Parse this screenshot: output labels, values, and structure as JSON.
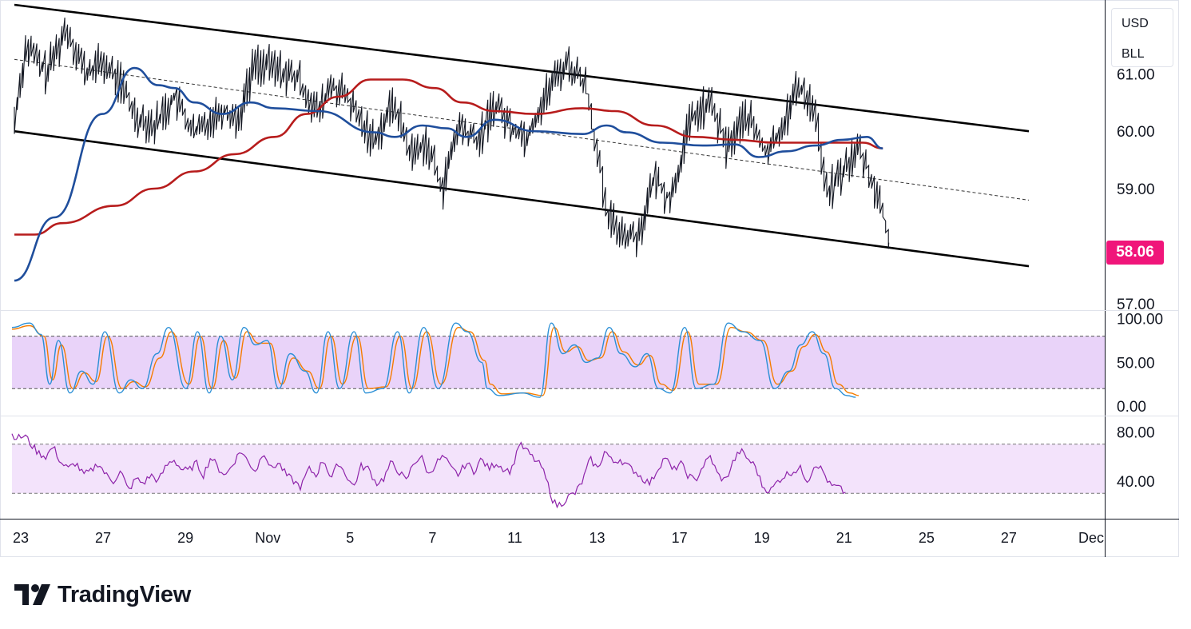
{
  "units": {
    "currency": "USD",
    "unit": "BLL"
  },
  "last_price_label": "58.06",
  "brand": {
    "name": "TradingView"
  },
  "colors": {
    "price": "#131722",
    "ma_fast": "#1f4e9c",
    "ma_slow": "#b71c1c",
    "channel": "#000000",
    "price_tag": "#f0157a",
    "stoch_band": "#e3c8f7",
    "stoch_k": "#2a8fd6",
    "stoch_d": "#f57c00",
    "rsi_band": "#f3e3fb",
    "rsi_line": "#8e24aa"
  },
  "chart_data": [
    {
      "type": "line",
      "pane": "price",
      "x_axis_ticks": [
        "23",
        "27",
        "29",
        "Nov",
        "5",
        "7",
        "11",
        "13",
        "17",
        "19",
        "21",
        "25",
        "27",
        "Dec"
      ],
      "y_axis_ticks": [
        "61.00",
        "60.00",
        "59.00",
        "57.00"
      ],
      "ylim": [
        56.9,
        62.2
      ],
      "last_value": 58.06,
      "price_anchors": [
        [
          0,
          60.2
        ],
        [
          0.3,
          61.5
        ],
        [
          0.8,
          61.0
        ],
        [
          1.3,
          61.8
        ],
        [
          1.8,
          61.0
        ],
        [
          2.2,
          61.2
        ],
        [
          2.7,
          60.8
        ],
        [
          3.0,
          60.3
        ],
        [
          3.5,
          60.1
        ],
        [
          4.0,
          60.6
        ],
        [
          4.5,
          59.95
        ],
        [
          5.2,
          60.4
        ],
        [
          5.6,
          60.2
        ],
        [
          6.0,
          61.2
        ],
        [
          6.5,
          61.1
        ],
        [
          7.1,
          60.9
        ],
        [
          7.6,
          60.3
        ],
        [
          7.9,
          60.8
        ],
        [
          8.3,
          60.6
        ],
        [
          8.7,
          60.1
        ],
        [
          9.0,
          59.85
        ],
        [
          9.5,
          60.5
        ],
        [
          9.9,
          59.6
        ],
        [
          10.3,
          59.8
        ],
        [
          10.7,
          59.0
        ],
        [
          11.1,
          60.1
        ],
        [
          11.6,
          59.8
        ],
        [
          12.0,
          60.5
        ],
        [
          12.4,
          60.1
        ],
        [
          12.8,
          59.9
        ],
        [
          13.4,
          60.8
        ],
        [
          13.8,
          61.2
        ],
        [
          14.3,
          60.8
        ],
        [
          14.6,
          59.5
        ],
        [
          14.8,
          58.5
        ],
        [
          15.3,
          58.2
        ],
        [
          15.6,
          58.2
        ],
        [
          16.0,
          59.2
        ],
        [
          16.4,
          58.8
        ],
        [
          16.9,
          60.2
        ],
        [
          17.4,
          60.5
        ],
        [
          17.8,
          59.7
        ],
        [
          18.3,
          60.3
        ],
        [
          18.8,
          59.6
        ],
        [
          19.2,
          60.1
        ],
        [
          19.6,
          60.8
        ],
        [
          20.0,
          60.4
        ],
        [
          20.3,
          58.9
        ],
        [
          20.8,
          59.4
        ],
        [
          21.1,
          59.7
        ],
        [
          21.4,
          59.2
        ],
        [
          21.7,
          58.6
        ],
        [
          21.85,
          58.06
        ]
      ],
      "ma_fast_anchors": [
        [
          0,
          57.4
        ],
        [
          1.0,
          58.5
        ],
        [
          2.2,
          60.3
        ],
        [
          3.0,
          61.1
        ],
        [
          3.6,
          60.8
        ],
        [
          4.0,
          60.75
        ],
        [
          4.5,
          60.5
        ],
        [
          5.2,
          60.3
        ],
        [
          5.9,
          60.5
        ],
        [
          6.5,
          60.4
        ],
        [
          7.6,
          60.35
        ],
        [
          9.0,
          59.98
        ],
        [
          9.5,
          59.9
        ],
        [
          10.2,
          60.1
        ],
        [
          10.8,
          60.05
        ],
        [
          11.3,
          59.9
        ],
        [
          12.0,
          60.2
        ],
        [
          13.0,
          60.0
        ],
        [
          14.2,
          59.95
        ],
        [
          14.8,
          60.1
        ],
        [
          15.3,
          59.98
        ],
        [
          16.2,
          59.8
        ],
        [
          17.2,
          59.75
        ],
        [
          18.0,
          59.77
        ],
        [
          18.6,
          59.55
        ],
        [
          19.3,
          59.65
        ],
        [
          20.0,
          59.75
        ],
        [
          20.7,
          59.85
        ],
        [
          21.3,
          59.9
        ],
        [
          21.7,
          59.7
        ]
      ],
      "ma_slow_anchors": [
        [
          0,
          58.2
        ],
        [
          0.5,
          58.2
        ],
        [
          1.2,
          58.4
        ],
        [
          2.5,
          58.7
        ],
        [
          3.5,
          59.0
        ],
        [
          4.5,
          59.3
        ],
        [
          5.5,
          59.6
        ],
        [
          6.5,
          59.9
        ],
        [
          7.3,
          60.3
        ],
        [
          8.1,
          60.6
        ],
        [
          8.9,
          60.9
        ],
        [
          9.7,
          60.9
        ],
        [
          10.5,
          60.75
        ],
        [
          11.2,
          60.5
        ],
        [
          12.0,
          60.35
        ],
        [
          13.0,
          60.3
        ],
        [
          14.2,
          60.4
        ],
        [
          15.0,
          60.35
        ],
        [
          16.0,
          60.1
        ],
        [
          17.0,
          59.9
        ],
        [
          18.0,
          59.85
        ],
        [
          19.0,
          59.8
        ],
        [
          19.8,
          59.8
        ],
        [
          20.5,
          59.8
        ],
        [
          21.2,
          59.8
        ],
        [
          21.7,
          59.7
        ]
      ],
      "channel_upper": [
        [
          0,
          62.2
        ],
        [
          25.35,
          60.0
        ]
      ],
      "channel_lower": [
        [
          0,
          60.0
        ],
        [
          25.35,
          57.65
        ]
      ],
      "channel_mid": [
        [
          0,
          61.25
        ],
        [
          25.35,
          58.8
        ]
      ]
    },
    {
      "type": "line",
      "pane": "stochastic",
      "y_axis_ticks": [
        "100.00",
        "50.00",
        "0.00"
      ],
      "ylim": [
        -10,
        108
      ],
      "band": [
        20,
        80
      ],
      "k_anchors": [
        [
          0,
          90
        ],
        [
          0.6,
          95
        ],
        [
          1.0,
          82
        ],
        [
          1.3,
          25
        ],
        [
          1.6,
          75
        ],
        [
          2.0,
          15
        ],
        [
          2.4,
          40
        ],
        [
          2.8,
          25
        ],
        [
          3.2,
          85
        ],
        [
          3.7,
          15
        ],
        [
          4.1,
          30
        ],
        [
          4.5,
          20
        ],
        [
          5.0,
          60
        ],
        [
          5.4,
          90
        ],
        [
          6.0,
          20
        ],
        [
          6.4,
          85
        ],
        [
          6.8,
          15
        ],
        [
          7.2,
          80
        ],
        [
          7.6,
          30
        ],
        [
          8.0,
          90
        ],
        [
          8.4,
          70
        ],
        [
          8.8,
          75
        ],
        [
          9.2,
          20
        ],
        [
          9.6,
          60
        ],
        [
          10.1,
          40
        ],
        [
          10.5,
          15
        ],
        [
          10.9,
          85
        ],
        [
          11.3,
          20
        ],
        [
          11.8,
          85
        ],
        [
          12.2,
          15
        ],
        [
          12.8,
          20
        ],
        [
          13.3,
          85
        ],
        [
          13.7,
          15
        ],
        [
          14.2,
          90
        ],
        [
          14.7,
          20
        ],
        [
          15.3,
          95
        ],
        [
          15.7,
          85
        ],
        [
          16.2,
          50
        ],
        [
          16.4,
          20
        ],
        [
          16.8,
          12
        ],
        [
          17.6,
          15
        ],
        [
          18.2,
          10
        ],
        [
          18.6,
          95
        ],
        [
          19.0,
          60
        ],
        [
          19.4,
          70
        ],
        [
          19.8,
          50
        ],
        [
          20.2,
          55
        ],
        [
          20.6,
          90
        ],
        [
          21.0,
          60
        ],
        [
          21.5,
          45
        ],
        [
          21.9,
          60
        ],
        [
          22.3,
          20
        ],
        [
          22.7,
          15
        ],
        [
          23.2,
          90
        ],
        [
          23.6,
          20
        ],
        [
          24.2,
          25
        ],
        [
          24.7,
          95
        ],
        [
          25.2,
          85
        ],
        [
          25.8,
          75
        ],
        [
          26.3,
          20
        ],
        [
          26.8,
          40
        ],
        [
          27.2,
          70
        ],
        [
          27.6,
          85
        ],
        [
          28.0,
          60
        ],
        [
          28.4,
          20
        ],
        [
          28.8,
          12
        ],
        [
          29.1,
          10
        ]
      ],
      "d_anchors": [
        [
          0,
          88
        ],
        [
          0.6,
          92
        ],
        [
          1.1,
          80
        ],
        [
          1.4,
          30
        ],
        [
          1.7,
          70
        ],
        [
          2.1,
          20
        ],
        [
          2.5,
          38
        ],
        [
          2.9,
          28
        ],
        [
          3.3,
          80
        ],
        [
          3.8,
          20
        ],
        [
          4.2,
          28
        ],
        [
          4.6,
          22
        ],
        [
          5.1,
          55
        ],
        [
          5.5,
          85
        ],
        [
          6.1,
          25
        ],
        [
          6.5,
          80
        ],
        [
          6.9,
          20
        ],
        [
          7.3,
          75
        ],
        [
          7.7,
          32
        ],
        [
          8.1,
          85
        ],
        [
          8.5,
          72
        ],
        [
          8.9,
          72
        ],
        [
          9.3,
          25
        ],
        [
          9.7,
          55
        ],
        [
          10.2,
          40
        ],
        [
          10.6,
          20
        ],
        [
          11.0,
          80
        ],
        [
          11.4,
          25
        ],
        [
          11.9,
          80
        ],
        [
          12.3,
          20
        ],
        [
          12.9,
          22
        ],
        [
          13.4,
          80
        ],
        [
          13.8,
          20
        ],
        [
          14.3,
          85
        ],
        [
          14.8,
          25
        ],
        [
          15.4,
          90
        ],
        [
          15.8,
          85
        ],
        [
          16.3,
          52
        ],
        [
          16.5,
          25
        ],
        [
          16.9,
          14
        ],
        [
          17.7,
          15
        ],
        [
          18.3,
          12
        ],
        [
          18.7,
          90
        ],
        [
          19.1,
          62
        ],
        [
          19.5,
          68
        ],
        [
          19.9,
          52
        ],
        [
          20.3,
          55
        ],
        [
          20.7,
          85
        ],
        [
          21.1,
          62
        ],
        [
          21.6,
          47
        ],
        [
          22.0,
          58
        ],
        [
          22.4,
          25
        ],
        [
          22.8,
          18
        ],
        [
          23.3,
          85
        ],
        [
          23.7,
          25
        ],
        [
          24.3,
          25
        ],
        [
          24.8,
          90
        ],
        [
          25.3,
          85
        ],
        [
          25.9,
          75
        ],
        [
          26.4,
          25
        ],
        [
          26.9,
          40
        ],
        [
          27.3,
          68
        ],
        [
          27.7,
          82
        ],
        [
          28.1,
          62
        ],
        [
          28.5,
          25
        ],
        [
          28.9,
          15
        ],
        [
          29.2,
          12
        ]
      ]
    },
    {
      "type": "line",
      "pane": "rsi",
      "y_axis_ticks": [
        "80.00",
        "40.00"
      ],
      "ylim": [
        10,
        92
      ],
      "band": [
        30,
        70
      ],
      "rsi_anchors": [
        [
          0,
          78
        ],
        [
          0.3,
          75
        ],
        [
          0.7,
          77
        ],
        [
          1.0,
          70
        ],
        [
          1.4,
          63
        ],
        [
          1.8,
          60
        ],
        [
          2.2,
          68
        ],
        [
          2.6,
          55
        ],
        [
          3.0,
          50
        ],
        [
          3.4,
          55
        ],
        [
          3.8,
          45
        ],
        [
          4.2,
          48
        ],
        [
          4.6,
          55
        ],
        [
          5.0,
          45
        ],
        [
          5.4,
          40
        ],
        [
          5.8,
          48
        ],
        [
          6.2,
          32
        ],
        [
          6.6,
          42
        ],
        [
          7.0,
          38
        ],
        [
          7.4,
          45
        ],
        [
          7.8,
          40
        ],
        [
          8.2,
          52
        ],
        [
          8.6,
          58
        ],
        [
          9.0,
          50
        ],
        [
          9.4,
          48
        ],
        [
          9.8,
          55
        ],
        [
          10.2,
          45
        ],
        [
          10.6,
          60
        ],
        [
          11.0,
          50
        ],
        [
          11.4,
          45
        ],
        [
          11.8,
          55
        ],
        [
          12.2,
          65
        ],
        [
          12.6,
          55
        ],
        [
          13.0,
          48
        ],
        [
          13.4,
          65
        ],
        [
          13.8,
          50
        ],
        [
          14.2,
          55
        ],
        [
          14.6,
          45
        ],
        [
          15.0,
          40
        ],
        [
          15.4,
          35
        ],
        [
          15.8,
          50
        ],
        [
          16.2,
          45
        ],
        [
          16.6,
          58
        ],
        [
          17.0,
          42
        ],
        [
          17.4,
          55
        ],
        [
          17.8,
          45
        ],
        [
          18.2,
          35
        ],
        [
          18.6,
          52
        ],
        [
          19.0,
          50
        ],
        [
          19.4,
          38
        ],
        [
          19.8,
          42
        ],
        [
          20.2,
          55
        ],
        [
          20.6,
          48
        ],
        [
          21.0,
          40
        ],
        [
          21.4,
          55
        ],
        [
          21.8,
          60
        ],
        [
          22.2,
          45
        ],
        [
          22.6,
          55
        ],
        [
          23.0,
          60
        ],
        [
          23.4,
          50
        ],
        [
          23.8,
          45
        ],
        [
          24.2,
          55
        ],
        [
          24.6,
          48
        ],
        [
          25.0,
          58
        ],
        [
          25.4,
          50
        ],
        [
          25.8,
          55
        ],
        [
          26.2,
          50
        ],
        [
          26.6,
          48
        ],
        [
          27.0,
          70
        ],
        [
          27.4,
          65
        ],
        [
          27.8,
          58
        ],
        [
          28.2,
          52
        ],
        [
          28.6,
          35
        ],
        [
          28.8,
          25
        ],
        [
          29.0,
          20
        ],
        [
          29.3,
          22
        ],
        [
          29.7,
          28
        ],
        [
          30.0,
          30
        ],
        [
          30.4,
          40
        ],
        [
          30.8,
          58
        ],
        [
          31.2,
          50
        ],
        [
          31.6,
          65
        ],
        [
          32.0,
          55
        ],
        [
          32.4,
          58
        ],
        [
          32.8,
          52
        ],
        [
          33.2,
          48
        ],
        [
          33.6,
          42
        ],
        [
          34.0,
          38
        ],
        [
          34.4,
          50
        ],
        [
          34.8,
          60
        ],
        [
          35.2,
          48
        ],
        [
          35.6,
          55
        ],
        [
          36.0,
          45
        ],
        [
          36.4,
          40
        ],
        [
          36.8,
          52
        ],
        [
          37.2,
          60
        ],
        [
          37.6,
          45
        ],
        [
          38.0,
          40
        ],
        [
          38.4,
          55
        ],
        [
          38.8,
          65
        ],
        [
          39.2,
          58
        ],
        [
          39.6,
          52
        ],
        [
          40.0,
          35
        ],
        [
          40.4,
          32
        ],
        [
          40.8,
          40
        ],
        [
          41.2,
          45
        ],
        [
          41.6,
          48
        ],
        [
          42.0,
          50
        ],
        [
          42.4,
          40
        ],
        [
          42.8,
          55
        ],
        [
          43.2,
          48
        ],
        [
          43.6,
          36
        ],
        [
          44.0,
          35
        ],
        [
          44.4,
          30
        ]
      ]
    }
  ]
}
